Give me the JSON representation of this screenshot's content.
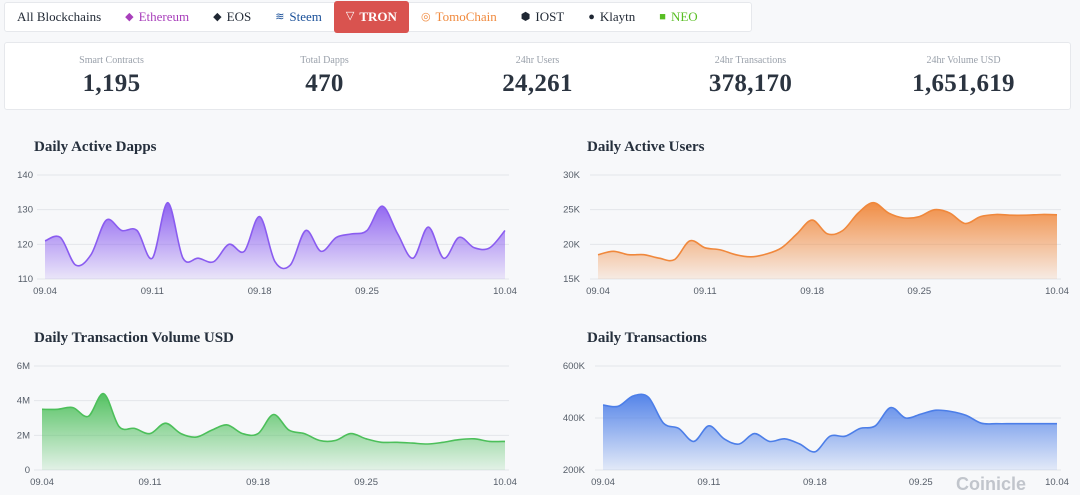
{
  "tabs": [
    {
      "label": "All Blockchains",
      "icon": "",
      "icon_name": "",
      "color": "#1f2733",
      "active": false
    },
    {
      "label": "Ethereum",
      "icon": "◆",
      "icon_name": "ethereum-icon",
      "color": "#a83fbb",
      "active": false
    },
    {
      "label": "EOS",
      "icon": "◆",
      "icon_name": "eos-icon",
      "color": "#1f2733",
      "active": false
    },
    {
      "label": "Steem",
      "icon": "≋",
      "icon_name": "steem-icon",
      "color": "#1a5099",
      "active": false
    },
    {
      "label": "TRON",
      "icon": "▽",
      "icon_name": "tron-icon",
      "color": "#ffffff",
      "active": true,
      "bg": "#d9534f"
    },
    {
      "label": "TomoChain",
      "icon": "◎",
      "icon_name": "tomochain-icon",
      "color": "#f08a3e",
      "active": false
    },
    {
      "label": "IOST",
      "icon": "⬢",
      "icon_name": "iost-icon",
      "color": "#1f2733",
      "active": false
    },
    {
      "label": "Klaytn",
      "icon": "●",
      "icon_name": "klaytn-icon",
      "color": "#1f2733",
      "active": false
    },
    {
      "label": "NEO",
      "icon": "■",
      "icon_name": "neo-icon",
      "color": "#58be23",
      "active": false
    }
  ],
  "stats": [
    {
      "label": "Smart Contracts",
      "value": "1,195"
    },
    {
      "label": "Total Dapps",
      "value": "470"
    },
    {
      "label": "24hr Users",
      "value": "24,261"
    },
    {
      "label": "24hr Transactions",
      "value": "378,170"
    },
    {
      "label": "24hr Volume USD",
      "value": "1,651,619"
    }
  ],
  "chart_data": [
    {
      "type": "area",
      "title": "Daily Active Dapps",
      "xlabel": "",
      "ylabel": "",
      "color": "#8a5cf0",
      "x_ticks": [
        "09.04",
        "09.11",
        "09.18",
        "09.25",
        "10.04"
      ],
      "y_ticks": [
        "110",
        "120",
        "130",
        "140"
      ],
      "ylim": [
        110,
        140
      ],
      "grid": true,
      "x": [
        "09.04",
        "09.05",
        "09.06",
        "09.07",
        "09.08",
        "09.09",
        "09.10",
        "09.11",
        "09.12",
        "09.13",
        "09.14",
        "09.15",
        "09.16",
        "09.17",
        "09.18",
        "09.19",
        "09.20",
        "09.21",
        "09.22",
        "09.23",
        "09.24",
        "09.25",
        "09.26",
        "09.27",
        "09.28",
        "09.29",
        "09.30",
        "10.01",
        "10.02",
        "10.03",
        "10.04"
      ],
      "series": [
        {
          "values": [
            121,
            122,
            114,
            117,
            127,
            124,
            124,
            116,
            132,
            116,
            116,
            115,
            120,
            118,
            128,
            115,
            114,
            124,
            118,
            122,
            123,
            124,
            131,
            123,
            116,
            125,
            116,
            122,
            119,
            119,
            124
          ]
        }
      ]
    },
    {
      "type": "area",
      "title": "Daily Active Users",
      "xlabel": "",
      "ylabel": "",
      "color": "#f0883c",
      "x_ticks": [
        "09.04",
        "09.11",
        "09.18",
        "09.25",
        "10.04"
      ],
      "y_ticks": [
        "15K",
        "20K",
        "25K",
        "30K"
      ],
      "ylim": [
        15000,
        30000
      ],
      "grid": true,
      "x": [
        "09.04",
        "09.05",
        "09.06",
        "09.07",
        "09.08",
        "09.09",
        "09.10",
        "09.11",
        "09.12",
        "09.13",
        "09.14",
        "09.15",
        "09.16",
        "09.17",
        "09.18",
        "09.19",
        "09.20",
        "09.21",
        "09.22",
        "09.23",
        "09.24",
        "09.25",
        "09.26",
        "09.27",
        "09.28",
        "09.29",
        "09.30",
        "10.01",
        "10.02",
        "10.03",
        "10.04"
      ],
      "series": [
        {
          "values": [
            18500,
            19000,
            18500,
            18500,
            18000,
            17800,
            20500,
            19500,
            19200,
            18500,
            18200,
            18600,
            19500,
            21500,
            23500,
            21500,
            22000,
            24500,
            26000,
            24500,
            23800,
            24000,
            25000,
            24500,
            23000,
            24000,
            24300,
            24200,
            24200,
            24300,
            24261
          ]
        }
      ]
    },
    {
      "type": "area",
      "title": "Daily Transaction Volume USD",
      "xlabel": "",
      "ylabel": "",
      "color": "#4cbf5a",
      "x_ticks": [
        "09.04",
        "09.11",
        "09.18",
        "09.25",
        "10.04"
      ],
      "y_ticks": [
        "0",
        "2M",
        "4M",
        "6M"
      ],
      "ylim": [
        0,
        6000000
      ],
      "grid": true,
      "x": [
        "09.04",
        "09.05",
        "09.06",
        "09.07",
        "09.08",
        "09.09",
        "09.10",
        "09.11",
        "09.12",
        "09.13",
        "09.14",
        "09.15",
        "09.16",
        "09.17",
        "09.18",
        "09.19",
        "09.20",
        "09.21",
        "09.22",
        "09.23",
        "09.24",
        "09.25",
        "09.26",
        "09.27",
        "09.28",
        "09.29",
        "09.30",
        "10.01",
        "10.02",
        "10.03",
        "10.04"
      ],
      "series": [
        {
          "values": [
            3500000,
            3500000,
            3600000,
            3100000,
            4400000,
            2500000,
            2400000,
            2100000,
            2700000,
            2100000,
            1900000,
            2300000,
            2600000,
            2100000,
            2100000,
            3200000,
            2300000,
            2100000,
            1700000,
            1700000,
            2100000,
            1800000,
            1600000,
            1600000,
            1550000,
            1500000,
            1600000,
            1750000,
            1800000,
            1650000,
            1651619
          ]
        }
      ]
    },
    {
      "type": "area",
      "title": "Daily Transactions",
      "xlabel": "",
      "ylabel": "",
      "color": "#4c7ee8",
      "x_ticks": [
        "09.04",
        "09.11",
        "09.18",
        "09.25",
        "10.04"
      ],
      "y_ticks": [
        "200K",
        "400K",
        "600K"
      ],
      "ylim": [
        200000,
        600000
      ],
      "grid": true,
      "x": [
        "09.04",
        "09.05",
        "09.06",
        "09.07",
        "09.08",
        "09.09",
        "09.10",
        "09.11",
        "09.12",
        "09.13",
        "09.14",
        "09.15",
        "09.16",
        "09.17",
        "09.18",
        "09.19",
        "09.20",
        "09.21",
        "09.22",
        "09.23",
        "09.24",
        "09.25",
        "09.26",
        "09.27",
        "09.28",
        "09.29",
        "09.30",
        "10.01",
        "10.02",
        "10.03",
        "10.04"
      ],
      "series": [
        {
          "values": [
            450000,
            445000,
            485000,
            480000,
            380000,
            360000,
            310000,
            370000,
            320000,
            300000,
            340000,
            310000,
            320000,
            300000,
            270000,
            330000,
            330000,
            360000,
            370000,
            440000,
            400000,
            415000,
            430000,
            425000,
            410000,
            380000,
            378170,
            378170,
            378170,
            378170,
            378170
          ]
        }
      ]
    }
  ],
  "watermark": "Coinicle"
}
